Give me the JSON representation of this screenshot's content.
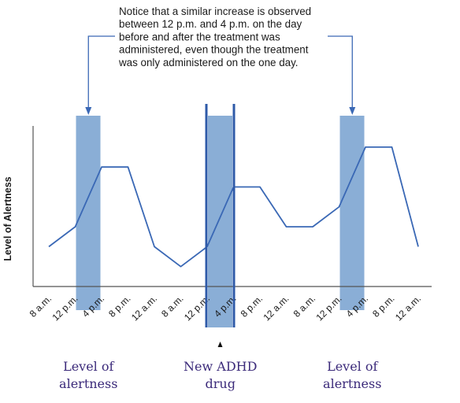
{
  "chart_data": {
    "type": "line",
    "ylabel": "Level of Alertness",
    "categories": [
      "8 a.m.",
      "12 p.m.",
      "4 p.m.",
      "8 p.m.",
      "12 a.m.",
      "8 a.m.",
      "12 p.m.",
      "4 p.m.",
      "8 p.m.",
      "12 a.m.",
      "8 a.m.",
      "12 p.m.",
      "4 p.m.",
      "8 p.m.",
      "12 a.m."
    ],
    "series": [
      {
        "values": [
          2.0,
          3.0,
          6.0,
          6.0,
          2.0,
          1.0,
          2.0,
          5.0,
          5.0,
          3.0,
          3.0,
          4.0,
          7.0,
          7.0,
          2.0
        ]
      }
    ],
    "ylim": [
      0,
      8
    ],
    "grid": false,
    "highlights": [
      {
        "from": "12 p.m.",
        "to": "4 p.m.",
        "day": 1
      },
      {
        "from": "12 p.m.",
        "to": "4 p.m.",
        "day": 2,
        "treatment": true
      },
      {
        "from": "12 p.m.",
        "to": "4 p.m.",
        "day": 3
      }
    ],
    "annotation": {
      "lines": [
        "Notice that a similar increase is observed",
        "between 12 p.m. and 4 p.m. on the day",
        "before and after the treatment was",
        "administered, even though the treatment",
        "was only administered on the one day."
      ]
    },
    "captions": [
      {
        "lines": [
          "Level of",
          "alertness"
        ]
      },
      {
        "lines": [
          "New ADHD",
          "drug"
        ]
      },
      {
        "lines": [
          "Level of",
          "alertness"
        ]
      }
    ],
    "colors": {
      "band": "#8aaed6",
      "line": "#3a68b5",
      "treatment_line": "#2e5aa8",
      "axis": "#555555",
      "caption": "#3b2a7a"
    }
  }
}
